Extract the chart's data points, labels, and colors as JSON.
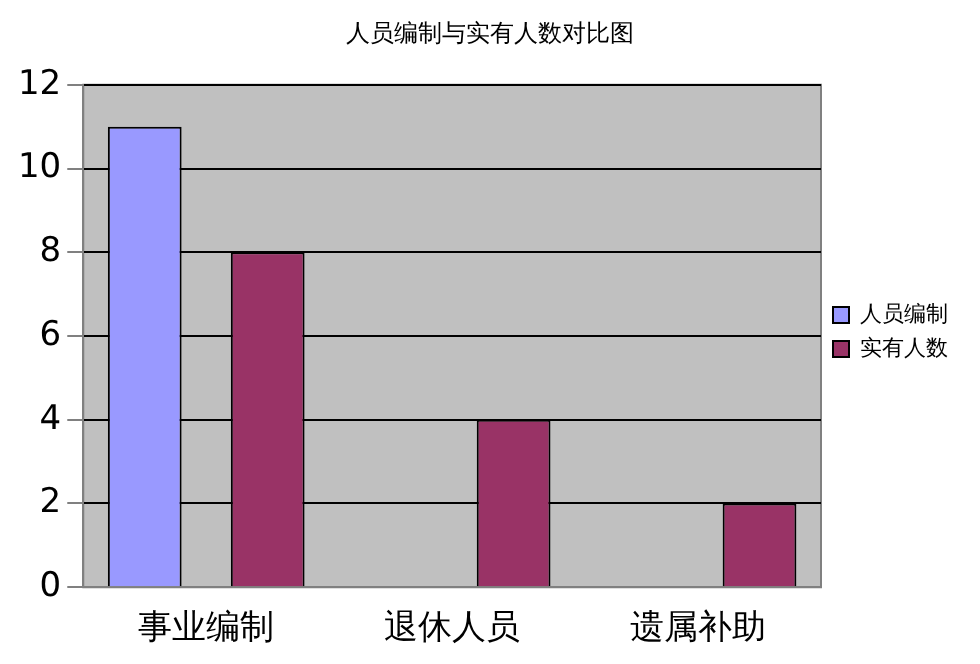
{
  "chart_data": {
    "type": "bar",
    "title": "人员编制与实有人数对比图",
    "categories": [
      "事业编制",
      "退休人员",
      "遗属补助"
    ],
    "series": [
      {
        "name": "人员编制",
        "color": "#9999ff",
        "values": [
          11,
          null,
          null
        ]
      },
      {
        "name": "实有人数",
        "color": "#993366",
        "values": [
          8,
          4,
          2
        ]
      }
    ],
    "ylim": [
      0,
      12
    ],
    "yticks": [
      0,
      2,
      4,
      6,
      8,
      10,
      12
    ],
    "grid": "y",
    "legend": "right"
  }
}
